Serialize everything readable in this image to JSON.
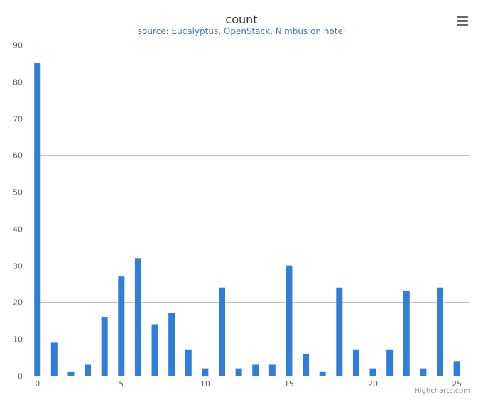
{
  "chart_data": {
    "type": "bar",
    "title": "count",
    "subtitle": "source: Eucalyptus, OpenStack, Nimbus on hotel",
    "x": [
      0,
      1,
      2,
      3,
      4,
      5,
      6,
      7,
      8,
      9,
      10,
      11,
      12,
      13,
      14,
      15,
      16,
      17,
      18,
      19,
      20,
      21,
      22,
      23,
      24,
      25
    ],
    "values": [
      85,
      9,
      1,
      3,
      16,
      27,
      32,
      14,
      17,
      7,
      2,
      24,
      2,
      3,
      3,
      30,
      6,
      1,
      24,
      7,
      2,
      7,
      23,
      2,
      24,
      4
    ],
    "xticks": [
      0,
      5,
      10,
      15,
      20,
      25
    ],
    "yticks": [
      0,
      10,
      20,
      30,
      40,
      50,
      60,
      70,
      80,
      90
    ],
    "ylim": [
      0,
      90
    ],
    "xlim": [
      -0.2,
      25.8
    ],
    "xlabel": "",
    "ylabel": "",
    "grid": true,
    "legend": "none",
    "bar_color": "#2f7ed8"
  },
  "credits": "Highcharts.com",
  "menu_icon": "hamburger-menu-icon"
}
